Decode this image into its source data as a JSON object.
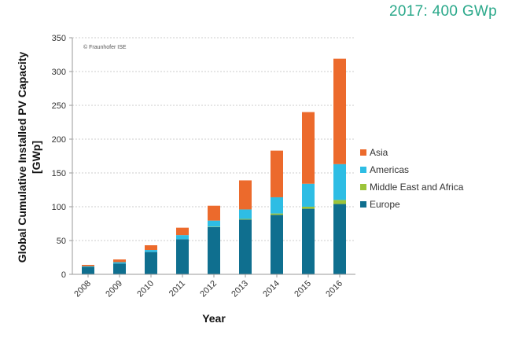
{
  "headline": "2017: 400 GWp",
  "chart_data": {
    "type": "bar",
    "stacked": true,
    "categories": [
      "2008",
      "2009",
      "2010",
      "2011",
      "2012",
      "2013",
      "2014",
      "2015",
      "2016"
    ],
    "series": [
      {
        "name": "Europe",
        "color": "#0f6f8f",
        "values": [
          11,
          16,
          33,
          52,
          70,
          81,
          88,
          97,
          104
        ]
      },
      {
        "name": "Middle East and Africa",
        "color": "#9cc43a",
        "values": [
          0,
          0,
          0,
          0,
          0.5,
          1,
          2,
          3,
          6
        ]
      },
      {
        "name": "Americas",
        "color": "#2ebde4",
        "values": [
          1,
          2,
          3,
          6,
          9,
          14,
          24,
          34,
          53
        ]
      },
      {
        "name": "Asia",
        "color": "#ec6a2c",
        "values": [
          2,
          4,
          7,
          11,
          22,
          43,
          69,
          106,
          156
        ]
      }
    ],
    "legend_order": [
      "Asia",
      "Americas",
      "Middle East and Africa",
      "Europe"
    ],
    "legend_position": "right",
    "ylim": [
      0,
      350
    ],
    "yticks": [
      0,
      50,
      100,
      150,
      200,
      250,
      300,
      350
    ],
    "ylabel_line1": "Global Cumulative Installed PV Capacity",
    "ylabel_line2": "[GWp]",
    "xlabel": "Year",
    "grid": "horizontal dashed",
    "credit": "© Fraunhofer ISE"
  }
}
